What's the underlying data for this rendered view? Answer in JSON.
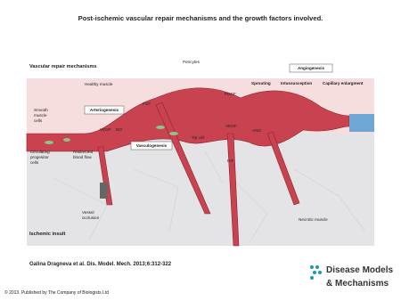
{
  "header": {
    "title": "Post-ischemic vascular repair mechanisms and the growth factors involved."
  },
  "diagram": {
    "section_top": "Vascular repair mechanisms",
    "section_bottom": "Ischemic insult",
    "healthy": "Healthy muscle",
    "pericytes": "Pericytes",
    "angiogenesis": "Angiogenesis",
    "sprouting": "Sprouting",
    "intussusception": "Intussusception",
    "capillary": "Capillary enlargment",
    "pdgf": "PDGF",
    "fgf": "FGF",
    "arteriogenesis": "Arteriogenesis",
    "vegf_left": "VEGF",
    "no": "NO",
    "smooth": [
      "Smooth",
      "muscle",
      "cells"
    ],
    "circulating": [
      "Circulating",
      "progenitor",
      "cells"
    ],
    "redirected": [
      "Redirected",
      "blood flow"
    ],
    "vasculogenesis": "Vasculogenesis",
    "tip": "Tip cell",
    "vegf_right": "VEGF",
    "hif": "HIF",
    "ang": "ANG",
    "occlusion": [
      "Vessel",
      "occlusion"
    ],
    "necrotic": "Necrotic muscle"
  },
  "footer": {
    "citation": "Galina Dragneva et al. Dis. Model. Mech. 2013;6:312-322",
    "copyright": "© 2013. Published by The Company of Biologists Ltd",
    "logo": [
      "Disease Models",
      "& Mechanisms"
    ]
  }
}
